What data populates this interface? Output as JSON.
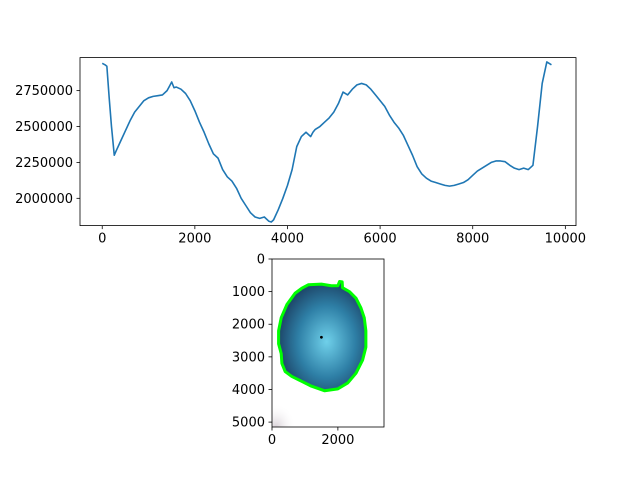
{
  "chart_data": [
    {
      "type": "line",
      "title": "",
      "xlabel": "",
      "ylabel": "",
      "xlim": [
        -480,
        10230
      ],
      "ylim": [
        1810000,
        2980000
      ],
      "x_ticks": [
        0,
        2000,
        4000,
        6000,
        8000,
        10000
      ],
      "x_tick_labels": [
        "0",
        "2000",
        "4000",
        "6000",
        "8000",
        "10000"
      ],
      "y_ticks": [
        2000000,
        2250000,
        2500000,
        2750000
      ],
      "y_tick_labels": [
        "2000000",
        "2250000",
        "2500000",
        "2750000"
      ],
      "grid": false,
      "series": [
        {
          "color": "#1f77b4",
          "x": [
            0,
            60,
            100,
            150,
            200,
            260,
            300,
            400,
            500,
            600,
            700,
            800,
            900,
            1000,
            1100,
            1200,
            1300,
            1400,
            1450,
            1500,
            1550,
            1600,
            1700,
            1800,
            1900,
            2000,
            2100,
            2200,
            2300,
            2400,
            2500,
            2600,
            2700,
            2800,
            2900,
            3000,
            3100,
            3200,
            3300,
            3400,
            3500,
            3600,
            3650,
            3700,
            3800,
            3900,
            4000,
            4100,
            4200,
            4300,
            4400,
            4500,
            4550,
            4600,
            4700,
            4800,
            4900,
            5000,
            5100,
            5200,
            5300,
            5400,
            5500,
            5600,
            5700,
            5800,
            5900,
            6000,
            6100,
            6200,
            6300,
            6400,
            6500,
            6600,
            6700,
            6800,
            6900,
            7000,
            7100,
            7200,
            7300,
            7400,
            7500,
            7600,
            7700,
            7800,
            7900,
            8000,
            8100,
            8200,
            8300,
            8400,
            8500,
            8600,
            8700,
            8800,
            8900,
            9000,
            9100,
            9200,
            9300,
            9400,
            9500,
            9600,
            9700
          ],
          "values": [
            2940000,
            2930000,
            2920000,
            2700000,
            2500000,
            2300000,
            2330000,
            2400000,
            2470000,
            2540000,
            2600000,
            2640000,
            2680000,
            2700000,
            2710000,
            2715000,
            2720000,
            2750000,
            2780000,
            2810000,
            2770000,
            2775000,
            2760000,
            2730000,
            2680000,
            2610000,
            2530000,
            2460000,
            2380000,
            2310000,
            2280000,
            2200000,
            2150000,
            2120000,
            2070000,
            2000000,
            1950000,
            1900000,
            1870000,
            1860000,
            1870000,
            1840000,
            1835000,
            1850000,
            1920000,
            2000000,
            2090000,
            2200000,
            2360000,
            2430000,
            2460000,
            2430000,
            2460000,
            2480000,
            2500000,
            2530000,
            2560000,
            2600000,
            2660000,
            2740000,
            2720000,
            2760000,
            2790000,
            2800000,
            2790000,
            2760000,
            2720000,
            2680000,
            2640000,
            2580000,
            2530000,
            2490000,
            2440000,
            2370000,
            2300000,
            2220000,
            2170000,
            2140000,
            2120000,
            2110000,
            2100000,
            2090000,
            2085000,
            2090000,
            2100000,
            2110000,
            2130000,
            2160000,
            2190000,
            2210000,
            2230000,
            2250000,
            2260000,
            2260000,
            2255000,
            2230000,
            2210000,
            2200000,
            2210000,
            2200000,
            2230000,
            2500000,
            2800000,
            2950000,
            2930000
          ]
        }
      ]
    },
    {
      "type": "image",
      "title": "",
      "xlabel": "",
      "ylabel": "",
      "xlim": [
        0,
        3400
      ],
      "ylim": [
        5150,
        0
      ],
      "x_ticks": [
        0,
        2000
      ],
      "x_tick_labels": [
        "0",
        "2000"
      ],
      "y_ticks": [
        0,
        1000,
        2000,
        3000,
        4000,
        5000
      ],
      "y_tick_labels": [
        "0",
        "1000",
        "2000",
        "3000",
        "4000",
        "5000"
      ],
      "grid": false,
      "contour_color": "#00ff00",
      "background_color": "#ffffff",
      "object_colors": [
        "#1a3a5c",
        "#2e7fa6",
        "#6fd0ea"
      ],
      "centroid": [
        1500,
        2400
      ],
      "contour": [
        [
          1100,
          790
        ],
        [
          1500,
          770
        ],
        [
          1800,
          820
        ],
        [
          2000,
          820
        ],
        [
          2050,
          690
        ],
        [
          2130,
          700
        ],
        [
          2140,
          880
        ],
        [
          2350,
          1000
        ],
        [
          2550,
          1200
        ],
        [
          2700,
          1500
        ],
        [
          2800,
          1800
        ],
        [
          2850,
          2200
        ],
        [
          2850,
          2700
        ],
        [
          2750,
          3100
        ],
        [
          2550,
          3500
        ],
        [
          2300,
          3800
        ],
        [
          2000,
          3980
        ],
        [
          1600,
          4040
        ],
        [
          1200,
          3900
        ],
        [
          900,
          3750
        ],
        [
          600,
          3600
        ],
        [
          400,
          3450
        ],
        [
          300,
          3200
        ],
        [
          280,
          2900
        ],
        [
          200,
          2600
        ],
        [
          200,
          2200
        ],
        [
          280,
          1800
        ],
        [
          450,
          1400
        ],
        [
          700,
          1050
        ],
        [
          900,
          900
        ]
      ]
    }
  ]
}
